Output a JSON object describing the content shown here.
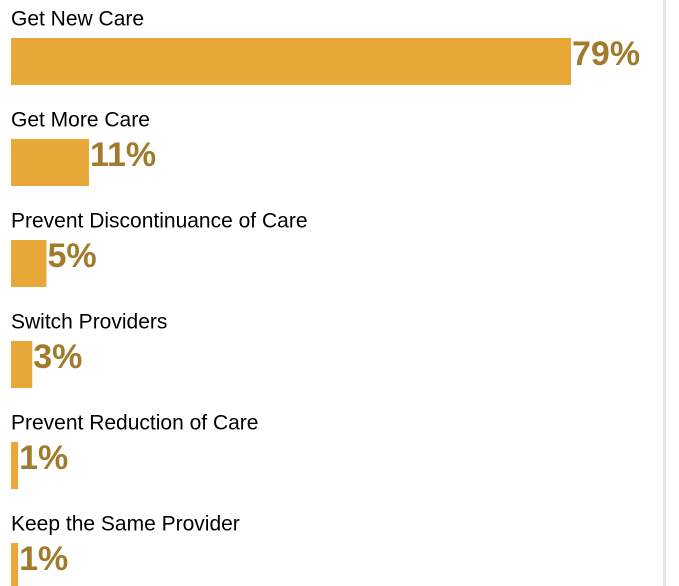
{
  "chart_data": {
    "type": "bar",
    "orientation": "horizontal",
    "categories": [
      "Get New Care",
      "Get More Care",
      "Prevent Discontinuance of Care",
      "Switch Providers",
      "Prevent Reduction of Care",
      "Keep the Same Provider"
    ],
    "values": [
      79,
      11,
      5,
      3,
      1,
      1
    ],
    "value_labels": [
      "79%",
      "11%",
      "5%",
      "3%",
      "1%",
      "1%"
    ],
    "color": "#e8a838"
  }
}
